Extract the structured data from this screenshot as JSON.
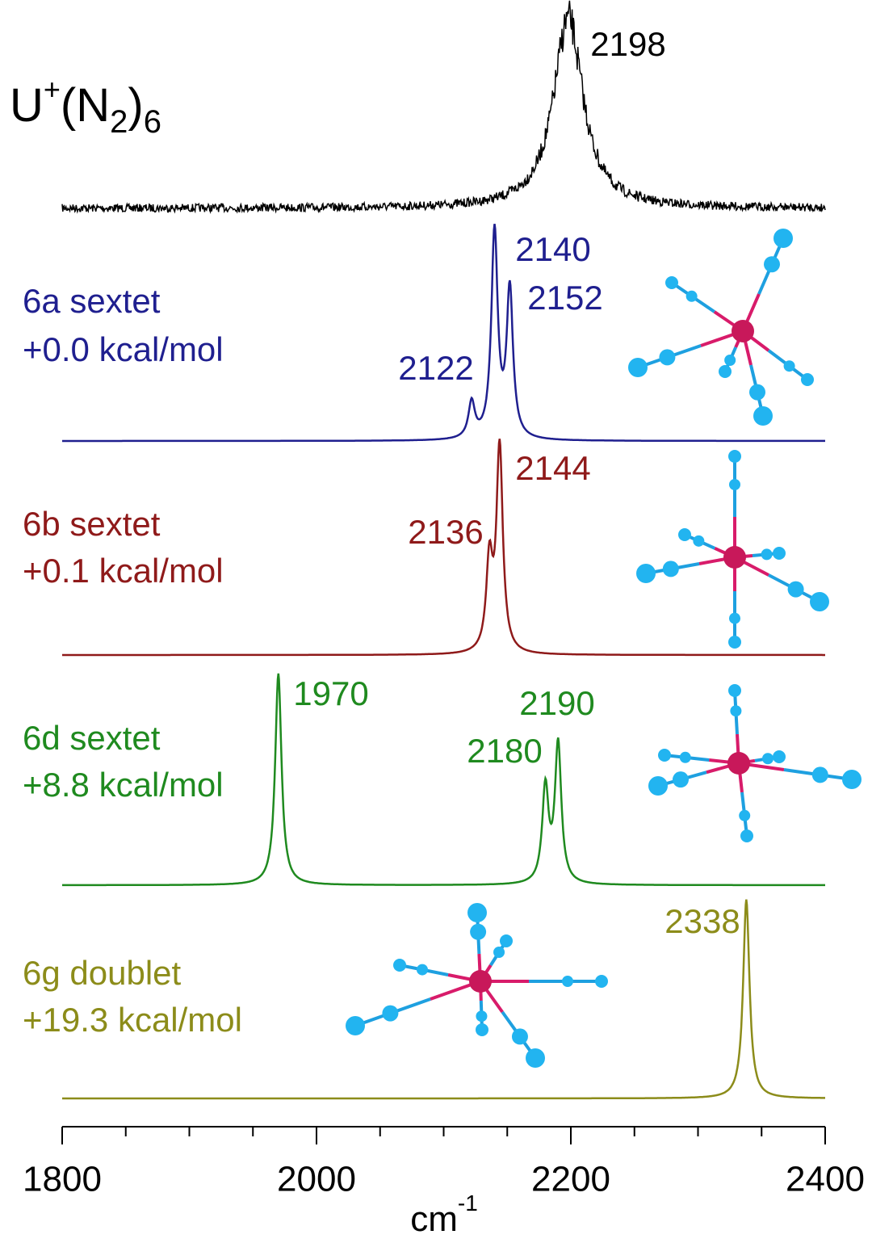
{
  "chart_data": {
    "type": "spectrum",
    "title_parts": [
      "U",
      "+",
      "(N",
      "2",
      ")",
      "6"
    ],
    "xlabel_parts": [
      "cm",
      "-1"
    ],
    "xlim": [
      1800,
      2400
    ],
    "xticks": [
      1800,
      2000,
      2200,
      2400
    ],
    "xminorticks": [
      1850,
      1900,
      1950,
      2050,
      2100,
      2150,
      2250,
      2300,
      2350
    ],
    "series": [
      {
        "color": "#000000",
        "peaks": [
          {
            "position": 2198,
            "intensity": 0.9
          }
        ]
      },
      {
        "name": "6a sextet",
        "energy": "+0.0 kcal/mol",
        "color": "#1f1f8f",
        "peaks": [
          {
            "position": 2122,
            "intensity": 0.17
          },
          {
            "position": 2140,
            "intensity": 0.98
          },
          {
            "position": 2152,
            "intensity": 0.7
          }
        ]
      },
      {
        "name": "6b sextet",
        "energy": "+0.1 kcal/mol",
        "color": "#8f1a1a",
        "peaks": [
          {
            "position": 2136,
            "intensity": 0.42
          },
          {
            "position": 2144,
            "intensity": 0.97
          }
        ]
      },
      {
        "name": "6d sextet",
        "energy": "+8.8 kcal/mol",
        "color": "#1f8a1f",
        "peaks": [
          {
            "position": 1970,
            "intensity": 1.0
          },
          {
            "position": 2180,
            "intensity": 0.45
          },
          {
            "position": 2190,
            "intensity": 0.66
          }
        ]
      },
      {
        "name": "6g doublet",
        "energy": "+19.3 kcal/mol",
        "color": "#8c8c1a",
        "peaks": [
          {
            "position": 2338,
            "intensity": 0.94
          }
        ]
      }
    ]
  }
}
